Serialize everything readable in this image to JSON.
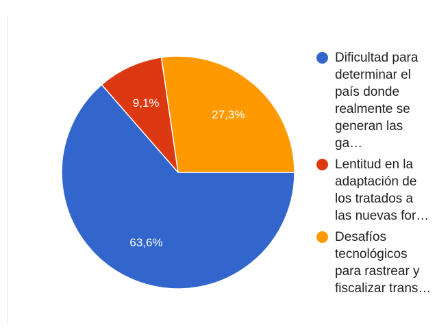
{
  "chart_data": {
    "type": "pie",
    "title": "",
    "slices": [
      {
        "label": "Dificultad para\ndeterminar el\npaís donde\nrealmente se\ngeneran las ga…",
        "value": 63.6,
        "display": "63,6%",
        "color": "#3366cc"
      },
      {
        "label": "Lentitud en la\nadaptación de\nlos tratados a\nlas nuevas for…",
        "value": 9.1,
        "display": "9,1%",
        "color": "#dc3912"
      },
      {
        "label": "Desafíos\ntecnológicos\npara rastrear y\nfiscalizar trans…",
        "value": 27.3,
        "display": "27,3%",
        "color": "#ff9900"
      }
    ],
    "legend_position": "right",
    "start_angle": "right, counter-clockwise order shown: orange top-right, red top, blue remainder"
  },
  "colors": {
    "blue": "#3366cc",
    "red": "#dc3912",
    "orange": "#ff9900",
    "text": "#212121",
    "slice_label_text": "#ffffff"
  }
}
